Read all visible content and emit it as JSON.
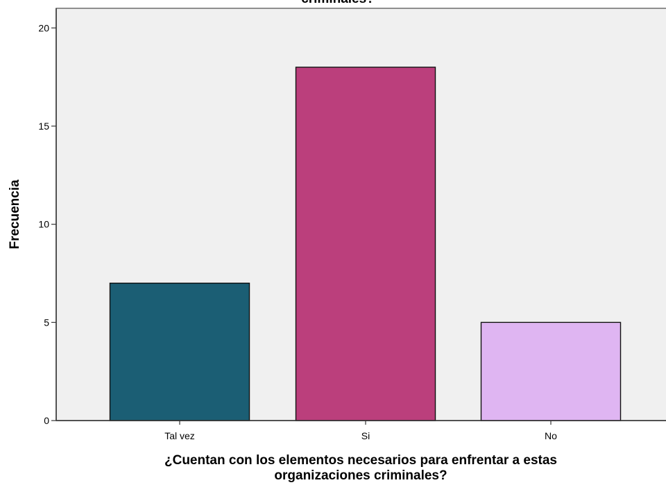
{
  "chart_data": {
    "type": "bar",
    "title": "criminales?",
    "xlabel_lines": [
      "¿Cuentan con los elementos necesarios para enfrentar a estas",
      "organizaciones criminales?"
    ],
    "ylabel": "Frecuencia",
    "categories": [
      "Tal vez",
      "Si",
      "No"
    ],
    "values": [
      7,
      18,
      5
    ],
    "ylim": [
      0,
      21
    ],
    "yticks": [
      "0",
      "5",
      "10",
      "15",
      "20"
    ],
    "grid": false,
    "colors": [
      "#1b5e74",
      "#bb3f7c",
      "#dfb5f2"
    ],
    "plot_background": "#f0f0f0"
  }
}
